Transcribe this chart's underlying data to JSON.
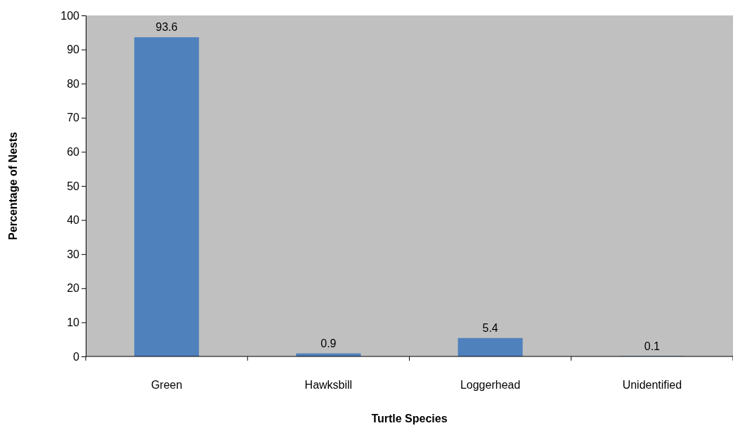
{
  "chart_data": {
    "type": "bar",
    "xlabel": "Turtle Species",
    "ylabel": "Percentage of Nests",
    "categories": [
      "Green",
      "Hawksbill",
      "Loggerhead",
      "Unidentified"
    ],
    "values": [
      93.6,
      0.9,
      5.4,
      0.1
    ],
    "color": "#4f81bd",
    "ylim": [
      0,
      100
    ],
    "yticks": [
      0,
      10,
      20,
      30,
      40,
      50,
      60,
      70,
      80,
      90,
      100
    ],
    "grid": false,
    "data_labels": true
  }
}
